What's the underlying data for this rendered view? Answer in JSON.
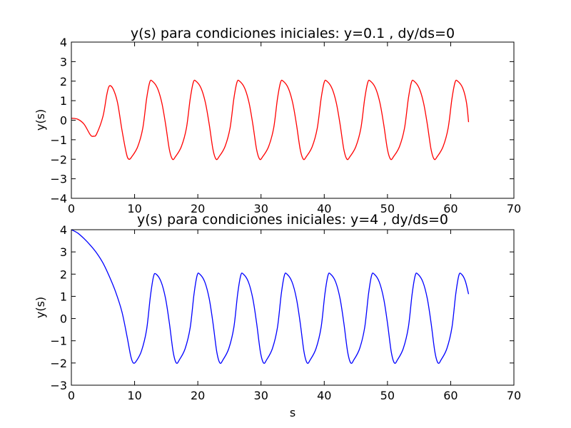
{
  "chart_data": [
    {
      "type": "line",
      "title": "y(s) para condiciones iniciales: y=0.1 , dy/ds=0",
      "xlabel": "",
      "ylabel": "y(s)",
      "xlim": [
        0,
        70
      ],
      "ylim": [
        -4,
        4
      ],
      "xticks": [
        0,
        10,
        20,
        30,
        40,
        50,
        60,
        70
      ],
      "yticks": [
        -4,
        -3,
        -2,
        -1,
        0,
        1,
        2,
        3,
        4
      ],
      "grid": false,
      "series": [
        {
          "color": "#ff0000",
          "points": [
            [
              0,
              0.1
            ],
            [
              1,
              0.05
            ],
            [
              2,
              -0.2
            ],
            [
              3,
              -0.75
            ],
            [
              3.5,
              -0.82
            ],
            [
              4,
              -0.7
            ],
            [
              5,
              0.2
            ],
            [
              5.6,
              1.3
            ],
            [
              6,
              1.75
            ],
            [
              6.6,
              1.6
            ],
            [
              7.3,
              0.9
            ],
            [
              8,
              -0.5
            ],
            [
              8.7,
              -1.7
            ],
            [
              9.1,
              -2.0
            ],
            [
              9.6,
              -1.85
            ],
            [
              10.5,
              -1.35
            ],
            [
              11.3,
              -0.4
            ],
            [
              11.9,
              1.1
            ],
            [
              12.4,
              1.95
            ],
            [
              12.8,
              2.0
            ],
            [
              13.6,
              1.65
            ],
            [
              14.3,
              0.9
            ],
            [
              14.9,
              -0.2
            ],
            [
              15.5,
              -1.5
            ],
            [
              16,
              -2.0
            ],
            [
              16.5,
              -1.85
            ],
            [
              17.4,
              -1.35
            ],
            [
              18.2,
              -0.4
            ],
            [
              18.8,
              1.1
            ],
            [
              19.3,
              1.95
            ],
            [
              19.7,
              2.0
            ],
            [
              20.5,
              1.65
            ],
            [
              21.2,
              0.9
            ],
            [
              21.8,
              -0.2
            ],
            [
              22.4,
              -1.5
            ],
            [
              22.9,
              -2.0
            ],
            [
              23.4,
              -1.85
            ],
            [
              24.3,
              -1.35
            ],
            [
              25.1,
              -0.4
            ],
            [
              25.7,
              1.1
            ],
            [
              26.2,
              1.95
            ],
            [
              26.6,
              2.0
            ],
            [
              27.4,
              1.65
            ],
            [
              28.1,
              0.9
            ],
            [
              28.7,
              -0.2
            ],
            [
              29.3,
              -1.5
            ],
            [
              29.8,
              -2.0
            ],
            [
              30.3,
              -1.85
            ],
            [
              31.2,
              -1.35
            ],
            [
              32,
              -0.4
            ],
            [
              32.6,
              1.1
            ],
            [
              33.1,
              1.95
            ],
            [
              33.5,
              2.0
            ],
            [
              34.3,
              1.65
            ],
            [
              35,
              0.9
            ],
            [
              35.6,
              -0.2
            ],
            [
              36.2,
              -1.5
            ],
            [
              36.7,
              -2.0
            ],
            [
              37.2,
              -1.85
            ],
            [
              38.1,
              -1.35
            ],
            [
              38.9,
              -0.4
            ],
            [
              39.5,
              1.1
            ],
            [
              40,
              1.95
            ],
            [
              40.4,
              2.0
            ],
            [
              41.2,
              1.65
            ],
            [
              41.9,
              0.9
            ],
            [
              42.5,
              -0.2
            ],
            [
              43.1,
              -1.5
            ],
            [
              43.6,
              -2.0
            ],
            [
              44.1,
              -1.85
            ],
            [
              45,
              -1.35
            ],
            [
              45.8,
              -0.4
            ],
            [
              46.4,
              1.1
            ],
            [
              46.9,
              1.95
            ],
            [
              47.3,
              2.0
            ],
            [
              48.1,
              1.65
            ],
            [
              48.8,
              0.9
            ],
            [
              49.4,
              -0.2
            ],
            [
              50,
              -1.5
            ],
            [
              50.5,
              -2.0
            ],
            [
              51,
              -1.85
            ],
            [
              51.9,
              -1.35
            ],
            [
              52.7,
              -0.4
            ],
            [
              53.3,
              1.1
            ],
            [
              53.8,
              1.95
            ],
            [
              54.2,
              2.0
            ],
            [
              55,
              1.65
            ],
            [
              55.7,
              0.9
            ],
            [
              56.3,
              -0.2
            ],
            [
              56.9,
              -1.5
            ],
            [
              57.4,
              -2.0
            ],
            [
              57.9,
              -1.85
            ],
            [
              58.8,
              -1.35
            ],
            [
              59.6,
              -0.4
            ],
            [
              60.2,
              1.1
            ],
            [
              60.7,
              1.95
            ],
            [
              61.1,
              2.0
            ],
            [
              61.9,
              1.65
            ],
            [
              62.5,
              0.9
            ],
            [
              62.83,
              -0.1
            ]
          ]
        }
      ]
    },
    {
      "type": "line",
      "title": "y(s) para condiciones iniciales: y=4 , dy/ds=0",
      "xlabel": "s",
      "ylabel": "y(s)",
      "xlim": [
        0,
        70
      ],
      "ylim": [
        -3,
        4
      ],
      "xticks": [
        0,
        10,
        20,
        30,
        40,
        50,
        60,
        70
      ],
      "yticks": [
        -3,
        -2,
        -1,
        0,
        1,
        2,
        3,
        4
      ],
      "grid": false,
      "series": [
        {
          "color": "#0000ff",
          "points": [
            [
              0,
              4.0
            ],
            [
              1,
              3.85
            ],
            [
              2,
              3.6
            ],
            [
              3,
              3.3
            ],
            [
              4,
              2.95
            ],
            [
              5,
              2.5
            ],
            [
              6,
              1.9
            ],
            [
              7,
              1.2
            ],
            [
              8,
              0.3
            ],
            [
              8.8,
              -0.8
            ],
            [
              9.4,
              -1.7
            ],
            [
              9.8,
              -2.0
            ],
            [
              10.3,
              -1.9
            ],
            [
              11.1,
              -1.45
            ],
            [
              11.9,
              -0.5
            ],
            [
              12.5,
              1.0
            ],
            [
              13,
              1.9
            ],
            [
              13.4,
              2.0
            ],
            [
              14.2,
              1.65
            ],
            [
              14.9,
              0.9
            ],
            [
              15.5,
              -0.2
            ],
            [
              16.1,
              -1.5
            ],
            [
              16.6,
              -2.0
            ],
            [
              17.1,
              -1.85
            ],
            [
              18,
              -1.35
            ],
            [
              18.8,
              -0.4
            ],
            [
              19.4,
              1.1
            ],
            [
              19.9,
              1.95
            ],
            [
              20.3,
              2.0
            ],
            [
              21.1,
              1.65
            ],
            [
              21.8,
              0.9
            ],
            [
              22.4,
              -0.2
            ],
            [
              23,
              -1.5
            ],
            [
              23.5,
              -2.0
            ],
            [
              24,
              -1.85
            ],
            [
              24.9,
              -1.35
            ],
            [
              25.7,
              -0.4
            ],
            [
              26.3,
              1.1
            ],
            [
              26.8,
              1.95
            ],
            [
              27.2,
              2.0
            ],
            [
              28,
              1.65
            ],
            [
              28.7,
              0.9
            ],
            [
              29.3,
              -0.2
            ],
            [
              29.9,
              -1.5
            ],
            [
              30.4,
              -2.0
            ],
            [
              30.9,
              -1.85
            ],
            [
              31.8,
              -1.35
            ],
            [
              32.6,
              -0.4
            ],
            [
              33.2,
              1.1
            ],
            [
              33.7,
              1.95
            ],
            [
              34.1,
              2.0
            ],
            [
              34.9,
              1.65
            ],
            [
              35.6,
              0.9
            ],
            [
              36.2,
              -0.2
            ],
            [
              36.8,
              -1.5
            ],
            [
              37.3,
              -2.0
            ],
            [
              37.8,
              -1.85
            ],
            [
              38.7,
              -1.35
            ],
            [
              39.5,
              -0.4
            ],
            [
              40.1,
              1.1
            ],
            [
              40.6,
              1.95
            ],
            [
              41,
              2.0
            ],
            [
              41.8,
              1.65
            ],
            [
              42.5,
              0.9
            ],
            [
              43.1,
              -0.2
            ],
            [
              43.7,
              -1.5
            ],
            [
              44.2,
              -2.0
            ],
            [
              44.7,
              -1.85
            ],
            [
              45.6,
              -1.35
            ],
            [
              46.4,
              -0.4
            ],
            [
              47,
              1.1
            ],
            [
              47.5,
              1.95
            ],
            [
              47.9,
              2.0
            ],
            [
              48.7,
              1.65
            ],
            [
              49.4,
              0.9
            ],
            [
              50,
              -0.2
            ],
            [
              50.6,
              -1.5
            ],
            [
              51.1,
              -2.0
            ],
            [
              51.6,
              -1.85
            ],
            [
              52.5,
              -1.35
            ],
            [
              53.3,
              -0.4
            ],
            [
              53.9,
              1.1
            ],
            [
              54.4,
              1.95
            ],
            [
              54.8,
              2.0
            ],
            [
              55.6,
              1.65
            ],
            [
              56.3,
              0.9
            ],
            [
              56.9,
              -0.2
            ],
            [
              57.5,
              -1.5
            ],
            [
              58,
              -2.0
            ],
            [
              58.5,
              -1.85
            ],
            [
              59.4,
              -1.35
            ],
            [
              60.2,
              -0.4
            ],
            [
              60.8,
              1.1
            ],
            [
              61.3,
              1.95
            ],
            [
              61.7,
              2.0
            ],
            [
              62.3,
              1.7
            ],
            [
              62.83,
              1.1
            ]
          ]
        }
      ]
    }
  ]
}
